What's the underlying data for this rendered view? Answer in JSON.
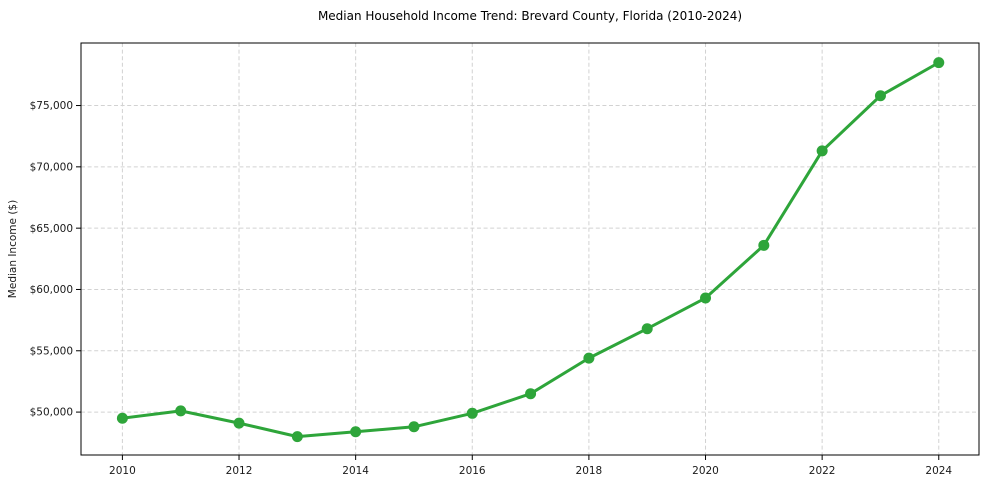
{
  "figure": {
    "background": "#ffffff"
  },
  "chart_data": {
    "type": "line",
    "title": "Median Household Income Trend: Brevard County, Florida (2010-2024)",
    "xlabel": "",
    "ylabel": "Median Income ($)",
    "x": [
      2010,
      2011,
      2012,
      2013,
      2014,
      2015,
      2016,
      2017,
      2018,
      2019,
      2020,
      2021,
      2022,
      2023,
      2024
    ],
    "series": [
      {
        "name": "Median Household Income",
        "values": [
          49500,
          50100,
          49100,
          48000,
          48400,
          48800,
          49900,
          51500,
          54400,
          56800,
          59300,
          63600,
          71300,
          75800,
          78500
        ],
        "color": "#2ea53a"
      }
    ],
    "xlim": [
      2009.29,
      2024.69
    ],
    "ylim": [
      46500,
      80100
    ],
    "x_ticks": [
      2010,
      2012,
      2014,
      2016,
      2018,
      2020,
      2022,
      2024
    ],
    "x_tick_labels": [
      "2010",
      "2012",
      "2014",
      "2016",
      "2018",
      "2020",
      "2022",
      "2024"
    ],
    "y_ticks": [
      50000,
      55000,
      60000,
      65000,
      70000,
      75000
    ],
    "y_tick_labels": [
      "$50,000",
      "$55,000",
      "$60,000",
      "$65,000",
      "$70,000",
      "$75,000"
    ],
    "grid": true,
    "grid_style": "dashed",
    "grid_color": "#d2d2d2",
    "legend": false,
    "marker": "circle",
    "line_width": 3,
    "marker_radius": 5.5,
    "axis_color": "#000000",
    "text_color": "#1a1a1a"
  }
}
